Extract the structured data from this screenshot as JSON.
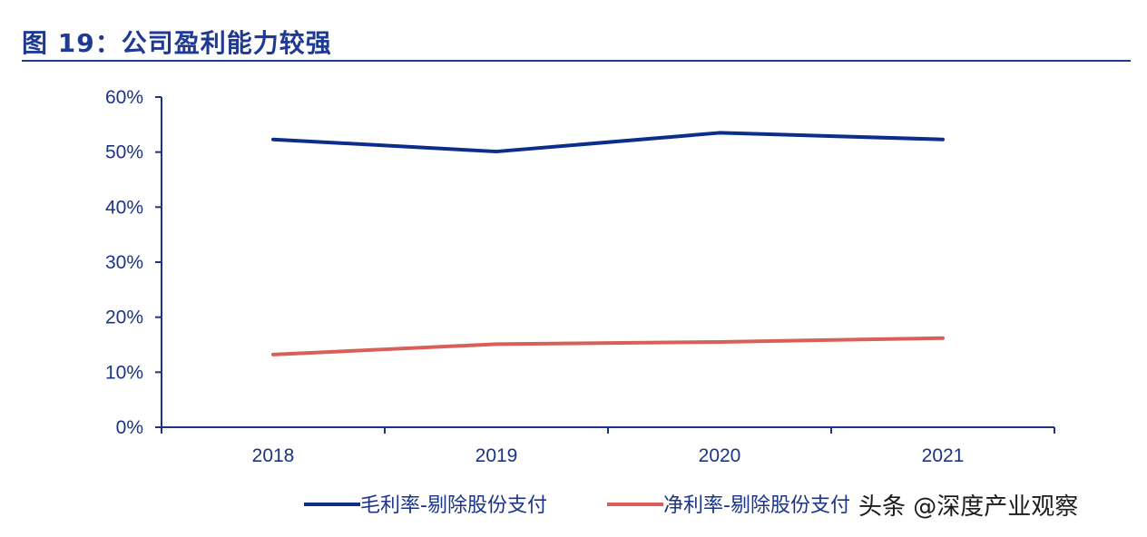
{
  "figure_title": "图 19：公司盈利能力较强",
  "watermark": "头条 @深度产业观察",
  "colors": {
    "title": "#1f3a93",
    "axis": "#1a3487",
    "series_gross": "#0d2d8c",
    "series_net": "#d9605a"
  },
  "chart_data": {
    "type": "line",
    "x": [
      "2018",
      "2019",
      "2020",
      "2021"
    ],
    "y_ticks": [
      "0%",
      "10%",
      "20%",
      "30%",
      "40%",
      "50%",
      "60%"
    ],
    "ylim": [
      0,
      60
    ],
    "grid": false,
    "legend_position": "bottom",
    "series": [
      {
        "name": "毛利率-剔除股份支付",
        "values": [
          52.3,
          50.1,
          53.5,
          52.3
        ],
        "color": "#0d2d8c"
      },
      {
        "name": "净利率-剔除股份支付",
        "values": [
          13.2,
          15.1,
          15.5,
          16.2
        ],
        "color": "#d9605a"
      }
    ]
  }
}
